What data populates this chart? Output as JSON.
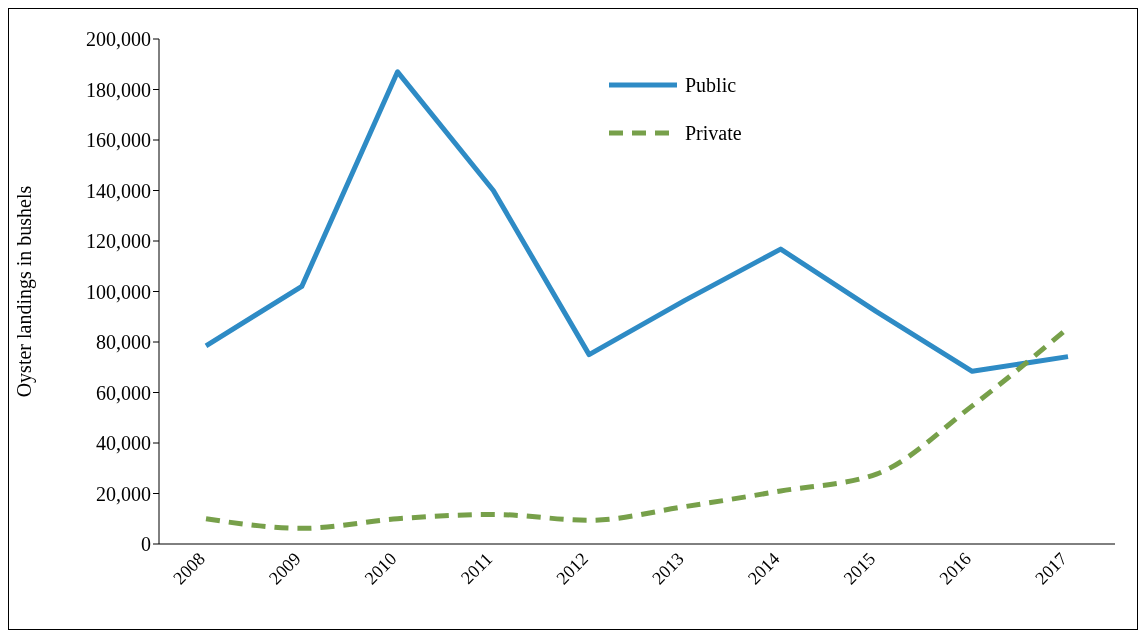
{
  "chart_data": {
    "type": "line",
    "ylabel": "Oyster landings in bushels",
    "categories": [
      "2008",
      "2009",
      "2010",
      "2011",
      "2012",
      "2013",
      "2014",
      "2015",
      "2016",
      "2017"
    ],
    "series": [
      {
        "name": "Public",
        "color": "#2e8bc5",
        "line_style": "solid",
        "values": [
          78500,
          102000,
          187000,
          140000,
          75000,
          96500,
          116800,
          92000,
          68400,
          74200
        ]
      },
      {
        "name": "Private",
        "color": "#77a04a",
        "line_style": "dashed",
        "values": [
          10000,
          6200,
          10000,
          11700,
          9400,
          14800,
          21000,
          27700,
          54700,
          85500
        ]
      }
    ],
    "ylim": [
      0,
      200000
    ],
    "yticks": [
      0,
      {
        "value": 20000,
        "label": "20,000"
      },
      {
        "value": 40000,
        "label": "40,000"
      },
      {
        "value": 60000,
        "label": "60,000"
      },
      {
        "value": 80000,
        "label": "80,000"
      },
      {
        "value": 100000,
        "label": "100,000"
      },
      {
        "value": 120000,
        "label": "120,000"
      },
      {
        "value": 140000,
        "label": "140,000"
      },
      {
        "value": 160000,
        "label": "160,000"
      },
      {
        "value": 180000,
        "label": "180,000"
      },
      {
        "value": 200000,
        "label": "200,000"
      }
    ],
    "grid": false,
    "legend": "top",
    "marker": "none"
  }
}
